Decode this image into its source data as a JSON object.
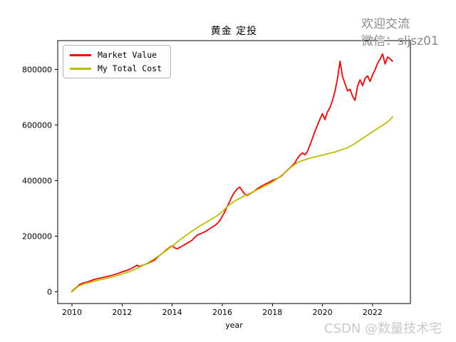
{
  "chart_data": {
    "type": "line",
    "title": "黄金 定投",
    "xlabel": "year",
    "ylabel": "",
    "grid": false,
    "legend_position": "upper left",
    "xlim": [
      2009.43,
      2023.51
    ],
    "ylim": [
      -42000,
      904000
    ],
    "xticks": [
      2010,
      2012,
      2014,
      2016,
      2018,
      2020,
      2022
    ],
    "yticks": [
      0,
      200000,
      400000,
      600000,
      800000
    ],
    "series": [
      {
        "name": "Market Value",
        "color": "#ff0000",
        "points": [
          [
            2010.0,
            2000
          ],
          [
            2010.15,
            14000
          ],
          [
            2010.3,
            26000
          ],
          [
            2010.45,
            32000
          ],
          [
            2010.6,
            35000
          ],
          [
            2010.75,
            40000
          ],
          [
            2010.9,
            45000
          ],
          [
            2011.0,
            47000
          ],
          [
            2011.15,
            50000
          ],
          [
            2011.3,
            53000
          ],
          [
            2011.45,
            56000
          ],
          [
            2011.6,
            60000
          ],
          [
            2011.75,
            64000
          ],
          [
            2011.9,
            68000
          ],
          [
            2012.0,
            72000
          ],
          [
            2012.15,
            76000
          ],
          [
            2012.3,
            81000
          ],
          [
            2012.45,
            88000
          ],
          [
            2012.6,
            96000
          ],
          [
            2012.7,
            91000
          ],
          [
            2012.8,
            95000
          ],
          [
            2012.9,
            98000
          ],
          [
            2013.0,
            102000
          ],
          [
            2013.15,
            108000
          ],
          [
            2013.3,
            115000
          ],
          [
            2013.45,
            128000
          ],
          [
            2013.6,
            138000
          ],
          [
            2013.75,
            150000
          ],
          [
            2013.9,
            160000
          ],
          [
            2014.0,
            166000
          ],
          [
            2014.1,
            158000
          ],
          [
            2014.2,
            155000
          ],
          [
            2014.35,
            162000
          ],
          [
            2014.5,
            170000
          ],
          [
            2014.65,
            178000
          ],
          [
            2014.8,
            186000
          ],
          [
            2014.9,
            196000
          ],
          [
            2015.0,
            204000
          ],
          [
            2015.15,
            210000
          ],
          [
            2015.3,
            216000
          ],
          [
            2015.45,
            224000
          ],
          [
            2015.6,
            233000
          ],
          [
            2015.75,
            242000
          ],
          [
            2015.9,
            256000
          ],
          [
            2016.0,
            272000
          ],
          [
            2016.1,
            288000
          ],
          [
            2016.2,
            308000
          ],
          [
            2016.3,
            326000
          ],
          [
            2016.4,
            345000
          ],
          [
            2016.5,
            360000
          ],
          [
            2016.6,
            371000
          ],
          [
            2016.7,
            377000
          ],
          [
            2016.8,
            363000
          ],
          [
            2016.9,
            352000
          ],
          [
            2017.0,
            347000
          ],
          [
            2017.1,
            353000
          ],
          [
            2017.2,
            358000
          ],
          [
            2017.3,
            364000
          ],
          [
            2017.4,
            371000
          ],
          [
            2017.5,
            377000
          ],
          [
            2017.6,
            382000
          ],
          [
            2017.7,
            387000
          ],
          [
            2017.8,
            391000
          ],
          [
            2017.9,
            396000
          ],
          [
            2018.0,
            401000
          ],
          [
            2018.1,
            404000
          ],
          [
            2018.2,
            408000
          ],
          [
            2018.3,
            413000
          ],
          [
            2018.4,
            420000
          ],
          [
            2018.5,
            430000
          ],
          [
            2018.6,
            438000
          ],
          [
            2018.7,
            446000
          ],
          [
            2018.8,
            455000
          ],
          [
            2018.9,
            464000
          ],
          [
            2019.0,
            480000
          ],
          [
            2019.1,
            492000
          ],
          [
            2019.2,
            500000
          ],
          [
            2019.3,
            493000
          ],
          [
            2019.4,
            505000
          ],
          [
            2019.5,
            528000
          ],
          [
            2019.6,
            552000
          ],
          [
            2019.7,
            578000
          ],
          [
            2019.8,
            600000
          ],
          [
            2019.9,
            622000
          ],
          [
            2020.0,
            641000
          ],
          [
            2020.1,
            620000
          ],
          [
            2020.2,
            648000
          ],
          [
            2020.3,
            663000
          ],
          [
            2020.4,
            689000
          ],
          [
            2020.5,
            722000
          ],
          [
            2020.6,
            768000
          ],
          [
            2020.7,
            830000
          ],
          [
            2020.8,
            775000
          ],
          [
            2020.9,
            749000
          ],
          [
            2021.0,
            723000
          ],
          [
            2021.1,
            729000
          ],
          [
            2021.2,
            704000
          ],
          [
            2021.3,
            689000
          ],
          [
            2021.4,
            740000
          ],
          [
            2021.5,
            763000
          ],
          [
            2021.6,
            742000
          ],
          [
            2021.7,
            768000
          ],
          [
            2021.8,
            777000
          ],
          [
            2021.9,
            757000
          ],
          [
            2022.0,
            781000
          ],
          [
            2022.1,
            799000
          ],
          [
            2022.2,
            822000
          ],
          [
            2022.3,
            838000
          ],
          [
            2022.4,
            856000
          ],
          [
            2022.5,
            820000
          ],
          [
            2022.6,
            845000
          ],
          [
            2022.7,
            838000
          ],
          [
            2022.8,
            830000
          ]
        ]
      },
      {
        "name": "My Total Cost",
        "color": "#bdbd00",
        "points": [
          [
            2010.0,
            0
          ],
          [
            2010.25,
            20000
          ],
          [
            2010.5,
            29000
          ],
          [
            2010.75,
            35000
          ],
          [
            2011.0,
            41000
          ],
          [
            2011.25,
            46000
          ],
          [
            2011.5,
            51000
          ],
          [
            2011.75,
            57000
          ],
          [
            2012.0,
            64000
          ],
          [
            2012.25,
            71000
          ],
          [
            2012.5,
            80000
          ],
          [
            2012.75,
            91000
          ],
          [
            2013.0,
            103000
          ],
          [
            2013.25,
            117000
          ],
          [
            2013.5,
            132000
          ],
          [
            2013.75,
            148000
          ],
          [
            2014.0,
            165000
          ],
          [
            2014.25,
            183000
          ],
          [
            2014.5,
            200000
          ],
          [
            2014.75,
            216000
          ],
          [
            2015.0,
            231000
          ],
          [
            2015.25,
            245000
          ],
          [
            2015.5,
            258000
          ],
          [
            2015.75,
            271000
          ],
          [
            2016.0,
            289000
          ],
          [
            2016.25,
            311000
          ],
          [
            2016.5,
            327000
          ],
          [
            2016.75,
            339000
          ],
          [
            2017.0,
            350000
          ],
          [
            2017.25,
            361000
          ],
          [
            2017.5,
            372000
          ],
          [
            2017.75,
            383000
          ],
          [
            2018.0,
            395000
          ],
          [
            2018.25,
            411000
          ],
          [
            2018.5,
            429000
          ],
          [
            2018.75,
            449000
          ],
          [
            2019.0,
            465000
          ],
          [
            2019.25,
            474000
          ],
          [
            2019.5,
            481000
          ],
          [
            2019.75,
            487000
          ],
          [
            2020.0,
            492000
          ],
          [
            2020.25,
            498000
          ],
          [
            2020.5,
            503000
          ],
          [
            2020.75,
            511000
          ],
          [
            2021.0,
            519000
          ],
          [
            2021.25,
            531000
          ],
          [
            2021.5,
            546000
          ],
          [
            2021.75,
            561000
          ],
          [
            2022.0,
            576000
          ],
          [
            2022.25,
            591000
          ],
          [
            2022.5,
            605000
          ],
          [
            2022.65,
            615000
          ],
          [
            2022.8,
            630000
          ]
        ]
      }
    ]
  },
  "watermarks": {
    "top_right": {
      "line1": "欢迎交流",
      "line2": "微信：sljsz01",
      "color": "#8a8a8a"
    },
    "bottom_right": {
      "text": "CSDN @数量技术宅",
      "color": "#c9c9c9"
    }
  }
}
